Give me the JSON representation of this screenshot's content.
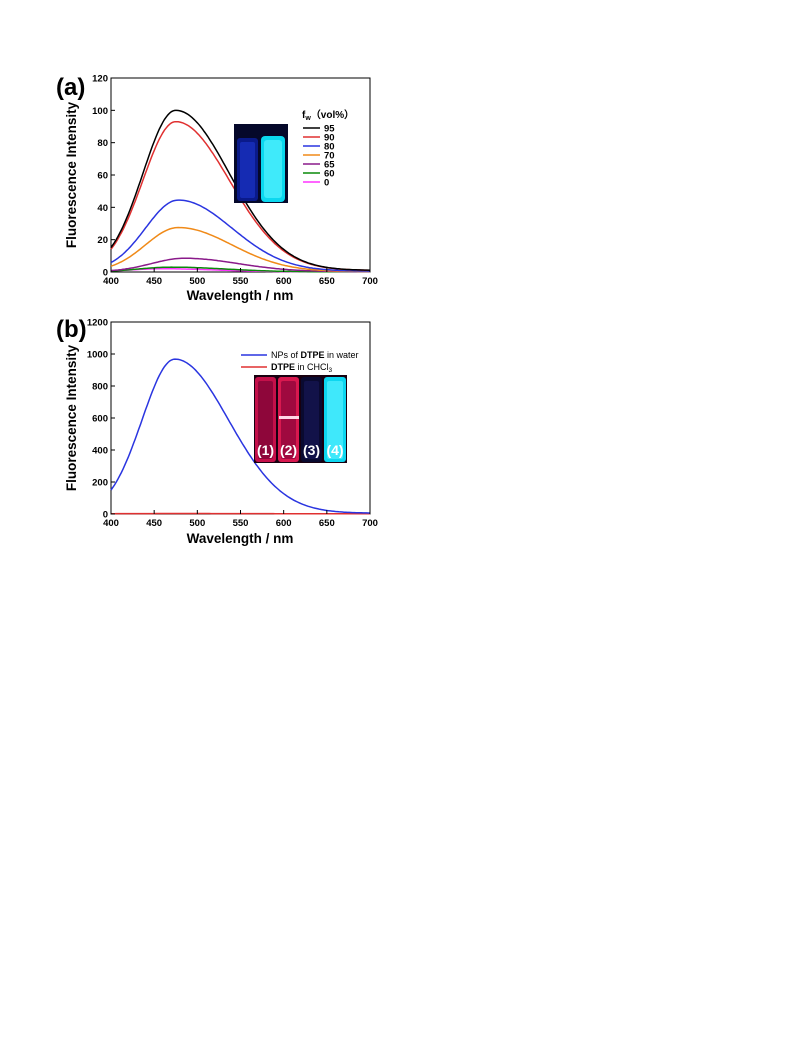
{
  "chart_data": [
    {
      "panel": "(a)",
      "type": "line",
      "xlabel": "Wavelength / nm",
      "ylabel": "Fluorescence Intensity",
      "xlim": [
        400,
        700
      ],
      "ylim": [
        0,
        120
      ],
      "xticks": [
        400,
        450,
        500,
        550,
        600,
        650,
        700
      ],
      "yticks": [
        0,
        20,
        40,
        60,
        80,
        100,
        120
      ],
      "legend_title": "fw（vol%）",
      "legend_title_main": "f",
      "legend_title_sub": "w",
      "legend_title_tail": "（vol%）",
      "legend_position": "right",
      "inset_image": "two vials under UV light, left dim blue, right bright cyan",
      "series": [
        {
          "name": "95",
          "color": "#000000",
          "peak_x": 475,
          "peak_y": 100,
          "base_y": 1
        },
        {
          "name": "90",
          "color": "#e03030",
          "peak_x": 475,
          "peak_y": 93,
          "base_y": 1
        },
        {
          "name": "80",
          "color": "#2a35e0",
          "peak_x": 478,
          "peak_y": 44.5,
          "base_y": 0.5
        },
        {
          "name": "70",
          "color": "#f08a18",
          "peak_x": 478,
          "peak_y": 27.5,
          "base_y": 0.3
        },
        {
          "name": "65",
          "color": "#8a1a8a",
          "peak_x": 485,
          "peak_y": 8.5,
          "base_y": 0.2
        },
        {
          "name": "60",
          "color": "#0a8a0a",
          "peak_x": 470,
          "peak_y": 3,
          "base_y": 0.1
        },
        {
          "name": "0",
          "color": "#ff33ff",
          "peak_x": 460,
          "peak_y": 2,
          "base_y": 0.1
        }
      ]
    },
    {
      "panel": "(b)",
      "type": "line",
      "xlabel": "Wavelength / nm",
      "ylabel": "Fluorescence Intensity",
      "xlim": [
        400,
        700
      ],
      "ylim": [
        0,
        1200
      ],
      "xticks": [
        400,
        450,
        500,
        550,
        600,
        650,
        700
      ],
      "yticks": [
        0,
        200,
        400,
        600,
        800,
        1000,
        1200
      ],
      "legend_position": "top-right",
      "inset_image": "four vials under light labelled (1) to (4); (1) and (2) pink/red, (3) dark, (4) bright cyan",
      "inset_labels": [
        "(1)",
        "(2)",
        "(3)",
        "(4)"
      ],
      "series": [
        {
          "name": "NPs of DTPE in water",
          "name_parts": [
            "NPs of ",
            "DTPE",
            " in water"
          ],
          "color": "#2a35e0",
          "peak_x": 474,
          "peak_y": 968,
          "base_y": 5
        },
        {
          "name": "DTPE in CHCl3",
          "name_parts": [
            "DTPE",
            " in CHCl",
            "3"
          ],
          "color": "#e03030",
          "peak_x": 475,
          "peak_y": 3,
          "base_y": 2
        }
      ]
    }
  ]
}
